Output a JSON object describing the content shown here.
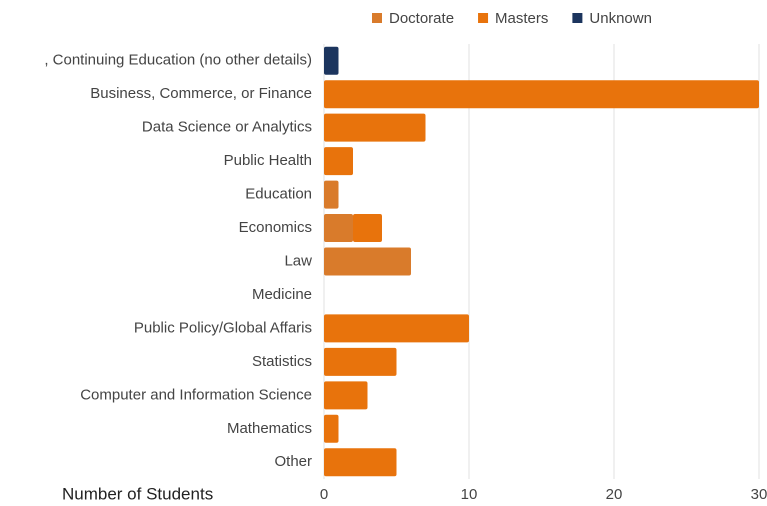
{
  "chart_data": {
    "type": "stacked-bar-horizontal",
    "categories": [
      ", Continuing Education (no other details)",
      "Business, Commerce, or Finance",
      "Data Science or Analytics",
      "Public Health",
      "Education",
      "Economics",
      "Law",
      "Medicine",
      "Public Policy/Global Affaris",
      "Statistics",
      "Computer and Information Science",
      "Mathematics",
      "Other"
    ],
    "series": [
      {
        "name": "Doctorate",
        "color": "#d97b2b",
        "values": [
          0,
          0,
          0,
          0,
          1,
          2,
          6,
          0,
          0,
          0,
          0,
          0,
          0
        ]
      },
      {
        "name": "Masters",
        "color": "#e8730c",
        "values": [
          0,
          30,
          7,
          2,
          0,
          2,
          0,
          0,
          10,
          5,
          3,
          1,
          5
        ]
      },
      {
        "name": "Unknown",
        "color": "#1c355e",
        "values": [
          1,
          0,
          0,
          0,
          0,
          0,
          0,
          0,
          0,
          0,
          0,
          0,
          0
        ]
      }
    ],
    "x_label": "Number of Students",
    "xlim": [
      0,
      30
    ],
    "xticks": [
      0,
      10,
      20,
      30
    ],
    "grid": true,
    "legend": "top"
  }
}
